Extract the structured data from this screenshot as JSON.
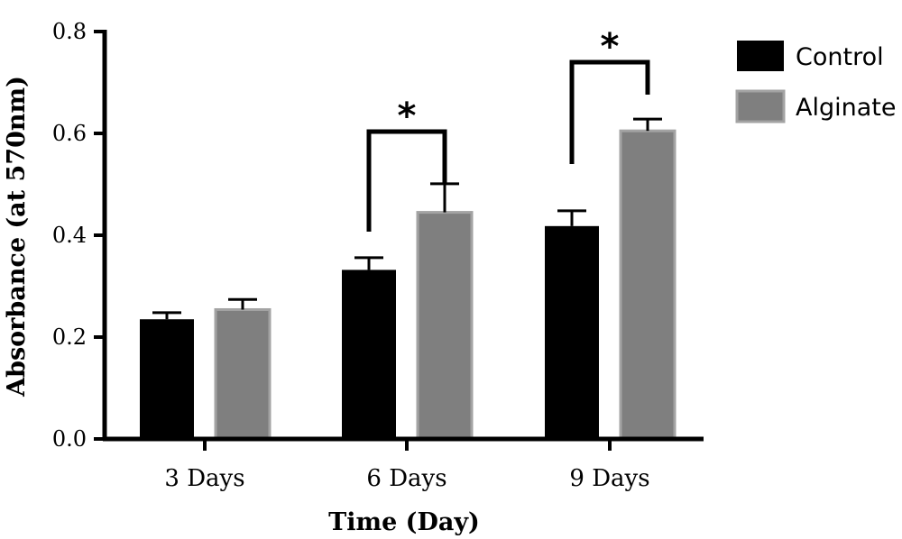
{
  "chart_data": {
    "type": "bar",
    "categories": [
      "3 Days",
      "6 Days",
      "9 Days"
    ],
    "series": [
      {
        "name": "Control",
        "values": [
          0.235,
          0.332,
          0.418
        ],
        "errors": [
          0.013,
          0.024,
          0.03
        ],
        "color": "#000000"
      },
      {
        "name": "Alginate",
        "values": [
          0.254,
          0.445,
          0.605
        ],
        "errors": [
          0.02,
          0.056,
          0.023
        ],
        "color": "#7f7f7f"
      }
    ],
    "title": "",
    "xlabel": "Time (Day)",
    "ylabel": "Absorbance (at 570nm)",
    "ylim": [
      0,
      0.8
    ],
    "yticks": [
      "0.0",
      "0.2",
      "0.4",
      "0.6",
      "0.8"
    ],
    "legend_position": "top-right",
    "grid": false,
    "significance": [
      {
        "category": "6 Days",
        "label": "*"
      },
      {
        "category": "9 Days",
        "label": "*"
      }
    ]
  }
}
